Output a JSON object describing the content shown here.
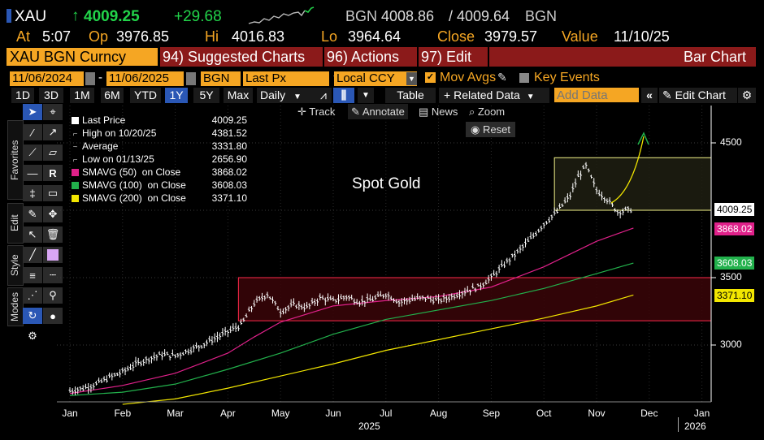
{
  "header": {
    "ticker": "XAU",
    "last": "4009.25",
    "change": "+29.68",
    "quote_source_left": "BGN",
    "bid": "4008.86",
    "ask": "4009.64",
    "quote_source_right": "BGN",
    "at_label": "At",
    "at_time": "5:07",
    "op_label": "Op",
    "open": "3976.85",
    "hi_label": "Hi",
    "high": "4016.83",
    "lo_label": "Lo",
    "low": "3964.64",
    "close_label": "Close",
    "close": "3979.57",
    "value_label": "Value",
    "value_date": "11/10/25"
  },
  "menubar": {
    "security": "XAU BGN Curncy",
    "suggested": "94) Suggested Charts",
    "actions": "96) Actions",
    "edit": "97) Edit",
    "chart_type": "Bar Chart"
  },
  "fieldbar": {
    "start_date": "11/06/2024",
    "end_date": "11/06/2025",
    "source": "BGN",
    "field": "Last Px",
    "currency": "Local CCY",
    "mov_avgs": "Mov Avgs",
    "key_events": "Key Events"
  },
  "toolbar": {
    "ranges": [
      "1D",
      "3D",
      "1M",
      "6M",
      "YTD",
      "1Y",
      "5Y",
      "Max"
    ],
    "active_range": "1Y",
    "period": "Daily",
    "table": "Table",
    "related": "Related Data",
    "add_data_placeholder": "Add Data",
    "edit_chart": "Edit Chart"
  },
  "chart_controls": {
    "track": "Track",
    "annotate": "Annotate",
    "news": "News",
    "zoom": "Zoom",
    "reset": "Reset"
  },
  "side_tabs": [
    "Favorites",
    "Edit",
    "Style",
    "Modes"
  ],
  "legend": [
    {
      "label": "Last Price",
      "value": "4009.25",
      "color": "#ffffff"
    },
    {
      "label": "High on 10/20/25",
      "value": "4381.52",
      "color": null
    },
    {
      "label": "Average",
      "value": "3331.80",
      "color": null
    },
    {
      "label": "Low on 01/13/25",
      "value": "2656.90",
      "color": null
    },
    {
      "label": "SMAVG (50)  on Close",
      "value": "3868.02",
      "color": "#e0218a"
    },
    {
      "label": "SMAVG (100)  on Close",
      "value": "3608.03",
      "color": "#22b14c"
    },
    {
      "label": "SMAVG (200)  on Close",
      "value": "3371.10",
      "color": "#f2e600"
    }
  ],
  "annotation_text": "Spot Gold",
  "price_tags": [
    {
      "value": "4009.25",
      "bg": "#ffffff",
      "fg": "#000000"
    },
    {
      "value": "3868.02",
      "bg": "#e0218a",
      "fg": "#ffffff"
    },
    {
      "value": "3608.03",
      "bg": "#22b14c",
      "fg": "#ffffff"
    },
    {
      "value": "3371.10",
      "bg": "#f2e600",
      "fg": "#000000"
    }
  ],
  "chart_data": {
    "type": "line",
    "title": "Spot Gold",
    "x_ticks": [
      "Jan",
      "Feb",
      "Mar",
      "Apr",
      "May",
      "Jun",
      "Jul",
      "Aug",
      "Sep",
      "Oct",
      "Nov",
      "Dec",
      "Jan"
    ],
    "x_year_labels": [
      "2025",
      "2026"
    ],
    "y_ticks": [
      3000,
      3500,
      4500
    ],
    "ylim": [
      2560,
      4780
    ],
    "series": [
      {
        "name": "Last Price",
        "color": "#ffffff",
        "x": [
          0,
          0.25,
          0.5,
          0.75,
          1.0,
          1.25,
          1.5,
          1.75,
          2.0,
          2.25,
          2.5,
          2.75,
          3.0,
          3.25,
          3.5,
          3.75,
          4.0,
          4.25,
          4.5,
          4.75,
          5.0,
          5.25,
          5.5,
          5.75,
          6.0,
          6.25,
          6.5,
          6.75,
          7.0,
          7.25,
          7.5,
          7.75,
          8.0,
          8.25,
          8.5,
          8.75,
          9.0,
          9.25,
          9.5,
          9.65,
          9.8,
          10.0,
          10.2,
          10.4,
          10.7
        ],
        "values": [
          2660,
          2680,
          2710,
          2760,
          2800,
          2860,
          2900,
          2930,
          2920,
          2960,
          3000,
          3050,
          3100,
          3150,
          3310,
          3380,
          3250,
          3300,
          3280,
          3350,
          3330,
          3360,
          3320,
          3340,
          3380,
          3320,
          3340,
          3350,
          3330,
          3360,
          3400,
          3430,
          3500,
          3600,
          3690,
          3790,
          3900,
          3990,
          4110,
          4250,
          4330,
          4150,
          4080,
          3990,
          4009.25
        ]
      },
      {
        "name": "SMAVG (50)",
        "color": "#e0218a",
        "x": [
          0,
          1,
          2,
          3,
          3.5,
          4,
          5,
          6,
          7,
          8,
          9,
          10,
          10.7
        ],
        "values": [
          2640,
          2700,
          2790,
          2940,
          3060,
          3170,
          3290,
          3330,
          3360,
          3430,
          3580,
          3770,
          3868.02
        ]
      },
      {
        "name": "SMAVG (100)",
        "color": "#22b14c",
        "x": [
          0,
          1,
          2,
          3,
          4,
          5,
          6,
          7,
          8,
          9,
          10,
          10.7
        ],
        "values": [
          2625,
          2650,
          2710,
          2820,
          2940,
          3080,
          3190,
          3260,
          3330,
          3420,
          3530,
          3608.03
        ]
      },
      {
        "name": "SMAVG (200)",
        "color": "#f2e600",
        "x": [
          1,
          2,
          3,
          4,
          5,
          6,
          7,
          8,
          9,
          10,
          10.7
        ],
        "values": [
          2560,
          2600,
          2680,
          2770,
          2860,
          2960,
          3040,
          3120,
          3200,
          3290,
          3371.1
        ]
      }
    ],
    "boxes": [
      {
        "from_x": 3.2,
        "to_x": 12.2,
        "low": 3180,
        "high": 3500,
        "color": "#ff2a4d"
      },
      {
        "from_x": 9.2,
        "to_x": 12.2,
        "low": 4000,
        "high": 4390,
        "color": "#f5f58a"
      }
    ]
  }
}
